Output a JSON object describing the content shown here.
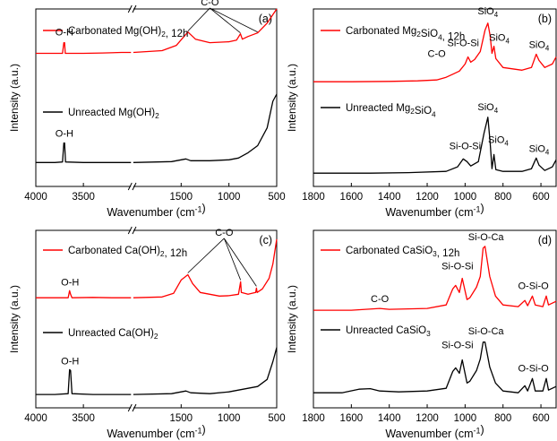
{
  "chart_data": [
    {
      "id": "a",
      "type": "line",
      "panel_label": "(a)",
      "xlabel": "Wavenumber (cm⁻¹)",
      "ylabel": "Intensity (a.u.)",
      "x_axis": {
        "broken": true,
        "reversed": true,
        "segments": [
          [
            4000,
            3000
          ],
          [
            2000,
            500
          ]
        ],
        "ticks": [
          4000,
          3500,
          1500,
          1000,
          500
        ],
        "tick_labels": [
          "4000",
          "3500",
          "1500",
          "1000",
          "500"
        ]
      },
      "y_range": [
        0,
        10
      ],
      "series": [
        {
          "name": "Carbonated Mg(OH)₂, 12h",
          "color": "#ff0000",
          "points": [
            [
              4000,
              7.5
            ],
            [
              3800,
              7.5
            ],
            [
              3720,
              7.5
            ],
            [
              3705,
              8.1
            ],
            [
              3698,
              8.1
            ],
            [
              3690,
              7.5
            ],
            [
              3500,
              7.5
            ],
            [
              3300,
              7.52
            ],
            [
              3100,
              7.55
            ],
            [
              3000,
              7.55
            ],
            [
              2000,
              7.55
            ],
            [
              1700,
              7.65
            ],
            [
              1550,
              7.95
            ],
            [
              1430,
              8.7
            ],
            [
              1350,
              8.3
            ],
            [
              1200,
              8.1
            ],
            [
              1000,
              8.15
            ],
            [
              920,
              8.25
            ],
            [
              880,
              8.6
            ],
            [
              860,
              8.3
            ],
            [
              800,
              8.45
            ],
            [
              700,
              8.65
            ],
            [
              600,
              9.2
            ],
            [
              500,
              10.0
            ]
          ]
        },
        {
          "name": "Unreacted Mg(OH)₂",
          "color": "#000000",
          "points": [
            [
              4000,
              1.35
            ],
            [
              3800,
              1.35
            ],
            [
              3720,
              1.38
            ],
            [
              3705,
              2.45
            ],
            [
              3698,
              2.45
            ],
            [
              3688,
              1.38
            ],
            [
              3500,
              1.35
            ],
            [
              3200,
              1.35
            ],
            [
              3000,
              1.35
            ],
            [
              2000,
              1.35
            ],
            [
              1600,
              1.4
            ],
            [
              1450,
              1.55
            ],
            [
              1400,
              1.45
            ],
            [
              1200,
              1.45
            ],
            [
              1000,
              1.5
            ],
            [
              900,
              1.6
            ],
            [
              800,
              1.9
            ],
            [
              700,
              2.3
            ],
            [
              600,
              3.3
            ],
            [
              540,
              4.8
            ],
            [
              500,
              5.2
            ]
          ]
        }
      ],
      "annotations": [
        {
          "text": "O-H",
          "x": 3700,
          "y": 8.5
        },
        {
          "text": "C-O",
          "x": 1200,
          "y": 10.2,
          "arrows_to": [
            [
              1430,
              8.75
            ],
            [
              880,
              8.65
            ],
            [
              700,
              8.7
            ]
          ]
        },
        {
          "text": "O-H",
          "x": 3700,
          "y": 2.8
        }
      ]
    },
    {
      "id": "b",
      "type": "line",
      "panel_label": "(b)",
      "xlabel": "Wavenumber (cm⁻¹)",
      "ylabel": "Intensity (a.u.)",
      "x_axis": {
        "reversed": true,
        "range": [
          1800,
          520
        ],
        "ticks": [
          1800,
          1600,
          1400,
          1200,
          1000,
          800,
          600
        ],
        "tick_labels": [
          "1800",
          "1600",
          "1400",
          "1200",
          "1000",
          "800",
          "600"
        ]
      },
      "y_range": [
        0,
        10
      ],
      "series": [
        {
          "name": "Carbonated Mg₂SiO₄, 12h",
          "color": "#ff0000",
          "points": [
            [
              1800,
              5.9
            ],
            [
              1600,
              5.9
            ],
            [
              1400,
              5.92
            ],
            [
              1250,
              5.95
            ],
            [
              1150,
              6.0
            ],
            [
              1100,
              6.15
            ],
            [
              1060,
              6.35
            ],
            [
              1030,
              6.5
            ],
            [
              1000,
              6.9
            ],
            [
              985,
              7.3
            ],
            [
              970,
              7.0
            ],
            [
              950,
              7.15
            ],
            [
              920,
              7.6
            ],
            [
              895,
              8.8
            ],
            [
              880,
              9.2
            ],
            [
              868,
              8.5
            ],
            [
              858,
              7.5
            ],
            [
              848,
              7.9
            ],
            [
              838,
              7.2
            ],
            [
              800,
              6.7
            ],
            [
              700,
              6.55
            ],
            [
              650,
              6.7
            ],
            [
              625,
              7.45
            ],
            [
              610,
              7.1
            ],
            [
              580,
              6.7
            ],
            [
              540,
              6.9
            ],
            [
              520,
              7.3
            ]
          ]
        },
        {
          "name": "Unreacted Mg₂SiO₄",
          "color": "#000000",
          "points": [
            [
              1800,
              0.75
            ],
            [
              1500,
              0.75
            ],
            [
              1300,
              0.78
            ],
            [
              1100,
              0.85
            ],
            [
              1040,
              1.1
            ],
            [
              1010,
              1.55
            ],
            [
              990,
              1.4
            ],
            [
              970,
              1.15
            ],
            [
              930,
              1.4
            ],
            [
              900,
              3.0
            ],
            [
              880,
              3.9
            ],
            [
              868,
              2.5
            ],
            [
              858,
              1.0
            ],
            [
              848,
              1.8
            ],
            [
              838,
              0.95
            ],
            [
              800,
              0.85
            ],
            [
              700,
              0.85
            ],
            [
              650,
              1.0
            ],
            [
              625,
              1.6
            ],
            [
              610,
              1.2
            ],
            [
              580,
              0.9
            ],
            [
              540,
              1.1
            ],
            [
              520,
              1.5
            ]
          ]
        }
      ],
      "annotations": [
        {
          "text": "C-O",
          "x": 1150,
          "y": 7.3
        },
        {
          "text": "Si-O-Si",
          "x": 1010,
          "y": 7.9
        },
        {
          "text": "SiO₄",
          "x": 880,
          "y": 9.7
        },
        {
          "text": "SiO₄",
          "x": 820,
          "y": 8.2
        },
        {
          "text": "SiO₄",
          "x": 610,
          "y": 7.8
        },
        {
          "text": "SiO₄",
          "x": 880,
          "y": 4.3
        },
        {
          "text": "Si-O-Si",
          "x": 1000,
          "y": 2.1
        },
        {
          "text": "SiO₄",
          "x": 825,
          "y": 2.45
        },
        {
          "text": "SiO₄",
          "x": 610,
          "y": 1.95
        }
      ]
    },
    {
      "id": "c",
      "type": "line",
      "panel_label": "(c)",
      "xlabel": "Wavenumber (cm⁻¹)",
      "ylabel": "Intensity (a.u.)",
      "x_axis": {
        "broken": true,
        "reversed": true,
        "segments": [
          [
            4000,
            3000
          ],
          [
            2000,
            500
          ]
        ],
        "ticks": [
          4000,
          3500,
          1500,
          1000,
          500
        ],
        "tick_labels": [
          "4000",
          "3500",
          "1500",
          "1000",
          "500"
        ]
      },
      "y_range": [
        0,
        10
      ],
      "series": [
        {
          "name": "Carbonated Ca(OH)₂, 12h",
          "color": "#ff0000",
          "points": [
            [
              4000,
              6.2
            ],
            [
              3800,
              6.2
            ],
            [
              3660,
              6.2
            ],
            [
              3645,
              6.6
            ],
            [
              3635,
              6.4
            ],
            [
              3620,
              6.2
            ],
            [
              3400,
              6.22
            ],
            [
              3200,
              6.2
            ],
            [
              3000,
              6.2
            ],
            [
              2000,
              6.2
            ],
            [
              1700,
              6.25
            ],
            [
              1580,
              6.45
            ],
            [
              1500,
              7.2
            ],
            [
              1430,
              7.5
            ],
            [
              1380,
              7.0
            ],
            [
              1300,
              6.5
            ],
            [
              1100,
              6.3
            ],
            [
              1000,
              6.32
            ],
            [
              900,
              6.4
            ],
            [
              878,
              7.1
            ],
            [
              870,
              6.5
            ],
            [
              800,
              6.4
            ],
            [
              720,
              6.5
            ],
            [
              712,
              6.75
            ],
            [
              705,
              6.5
            ],
            [
              650,
              6.7
            ],
            [
              580,
              7.3
            ],
            [
              540,
              8.1
            ],
            [
              500,
              9.5
            ]
          ]
        },
        {
          "name": "Unreacted Ca(OH)₂",
          "color": "#000000",
          "points": [
            [
              4000,
              0.75
            ],
            [
              3800,
              0.75
            ],
            [
              3660,
              0.8
            ],
            [
              3645,
              2.15
            ],
            [
              3635,
              2.1
            ],
            [
              3620,
              0.8
            ],
            [
              3400,
              0.75
            ],
            [
              3200,
              0.75
            ],
            [
              3000,
              0.75
            ],
            [
              2000,
              0.75
            ],
            [
              1600,
              0.8
            ],
            [
              1450,
              0.95
            ],
            [
              1400,
              0.85
            ],
            [
              1200,
              0.8
            ],
            [
              1000,
              0.9
            ],
            [
              900,
              1.0
            ],
            [
              800,
              1.1
            ],
            [
              700,
              1.2
            ],
            [
              600,
              1.6
            ],
            [
              540,
              2.6
            ],
            [
              500,
              3.4
            ]
          ]
        }
      ],
      "annotations": [
        {
          "text": "O-H",
          "x": 3640,
          "y": 6.9
        },
        {
          "text": "C-O",
          "x": 1050,
          "y": 9.7,
          "arrows_to": [
            [
              1430,
              7.6
            ],
            [
              878,
              7.2
            ],
            [
              712,
              6.85
            ]
          ]
        },
        {
          "text": "O-H",
          "x": 3640,
          "y": 2.45
        }
      ]
    },
    {
      "id": "d",
      "type": "line",
      "panel_label": "(d)",
      "xlabel": "Wavenumber (cm⁻¹)",
      "ylabel": "Intensity (a.u.)",
      "x_axis": {
        "reversed": true,
        "range": [
          1800,
          520
        ],
        "ticks": [
          1800,
          1600,
          1400,
          1200,
          1000,
          800,
          600
        ],
        "tick_labels": [
          "1800",
          "1600",
          "1400",
          "1200",
          "1000",
          "800",
          "600"
        ]
      },
      "y_range": [
        0,
        10
      ],
      "series": [
        {
          "name": "Carbonated CaSiO₃, 12h",
          "color": "#ff0000",
          "points": [
            [
              1800,
              5.5
            ],
            [
              1600,
              5.5
            ],
            [
              1450,
              5.6
            ],
            [
              1400,
              5.55
            ],
            [
              1200,
              5.6
            ],
            [
              1100,
              5.8
            ],
            [
              1065,
              6.7
            ],
            [
              1050,
              6.9
            ],
            [
              1030,
              6.5
            ],
            [
              1015,
              7.3
            ],
            [
              990,
              6.1
            ],
            [
              975,
              6.2
            ],
            [
              940,
              6.8
            ],
            [
              920,
              7.4
            ],
            [
              905,
              9.0
            ],
            [
              895,
              9.1
            ],
            [
              870,
              7.4
            ],
            [
              840,
              6.3
            ],
            [
              800,
              5.8
            ],
            [
              720,
              5.7
            ],
            [
              685,
              6.05
            ],
            [
              670,
              5.75
            ],
            [
              645,
              6.3
            ],
            [
              630,
              5.8
            ],
            [
              590,
              5.7
            ],
            [
              572,
              6.3
            ],
            [
              560,
              5.8
            ],
            [
              520,
              6.0
            ]
          ]
        },
        {
          "name": "Unreacted CaSiO₃",
          "color": "#000000",
          "points": [
            [
              1800,
              0.85
            ],
            [
              1650,
              0.85
            ],
            [
              1560,
              1.05
            ],
            [
              1500,
              1.08
            ],
            [
              1450,
              0.95
            ],
            [
              1350,
              0.9
            ],
            [
              1200,
              0.95
            ],
            [
              1100,
              1.1
            ],
            [
              1065,
              2.05
            ],
            [
              1050,
              2.25
            ],
            [
              1030,
              1.95
            ],
            [
              1015,
              2.7
            ],
            [
              990,
              1.4
            ],
            [
              975,
              1.5
            ],
            [
              940,
              2.1
            ],
            [
              920,
              2.75
            ],
            [
              905,
              3.7
            ],
            [
              895,
              3.7
            ],
            [
              870,
              2.3
            ],
            [
              840,
              1.4
            ],
            [
              800,
              0.95
            ],
            [
              720,
              0.85
            ],
            [
              685,
              1.25
            ],
            [
              670,
              0.95
            ],
            [
              645,
              1.65
            ],
            [
              630,
              0.95
            ],
            [
              590,
              0.95
            ],
            [
              572,
              1.65
            ],
            [
              560,
              1.0
            ],
            [
              520,
              1.2
            ]
          ]
        }
      ],
      "annotations": [
        {
          "text": "C-O",
          "x": 1450,
          "y": 5.95
        },
        {
          "text": "Si-O-Si",
          "x": 1040,
          "y": 7.8
        },
        {
          "text": "Si-O-Ca",
          "x": 890,
          "y": 9.45
        },
        {
          "text": "O-Si-O",
          "x": 640,
          "y": 6.7
        },
        {
          "text": "Si-O-Si",
          "x": 1040,
          "y": 3.35
        },
        {
          "text": "Si-O-Ca",
          "x": 890,
          "y": 4.15
        },
        {
          "text": "O-Si-O",
          "x": 640,
          "y": 2.05
        }
      ]
    }
  ]
}
